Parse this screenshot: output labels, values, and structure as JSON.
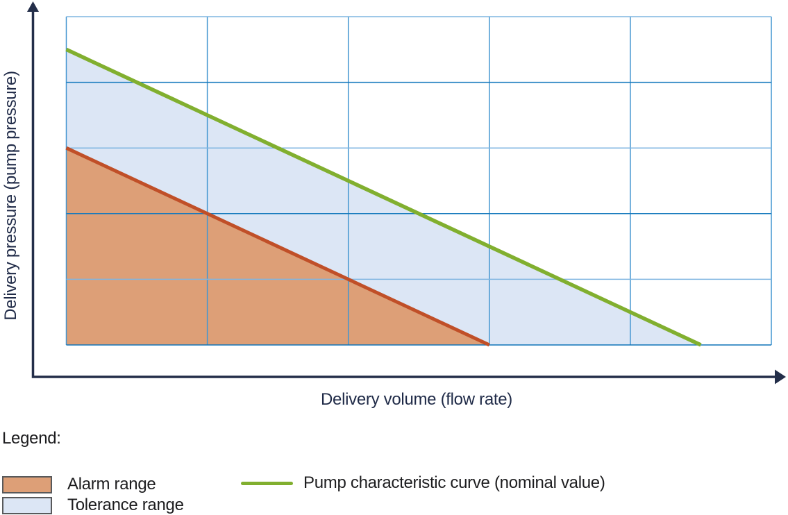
{
  "figure": {
    "y_axis_label": "Delivery pressure (pump pressure)",
    "x_axis_label": "Delivery volume (flow rate)"
  },
  "legend": {
    "title": "Legend:",
    "items": [
      {
        "swatch": "area",
        "color": "#DD9F77",
        "border": "#58595B",
        "label": "Alarm range"
      },
      {
        "swatch": "area",
        "color": "#DCE6F5",
        "border": "#58595B",
        "label": "Tolerance range"
      },
      {
        "swatch": "line",
        "color": "#81AF2F",
        "label": "Pump characteristic curve (nominal value)"
      }
    ]
  },
  "colors": {
    "axis": "#232E49",
    "axis_label_text": "#1F2A47",
    "legend_text": "#1D1D1F",
    "grid_vertical": "#4295D0",
    "alarm_fill": "#DD9F77",
    "alarm_line": "#C04F28",
    "tolerance_fill": "#DCE6F5",
    "nominal_line": "#81AF2F"
  },
  "chart_data": {
    "type": "area",
    "title": "",
    "xlabel": "Delivery volume (flow rate)",
    "ylabel": "Delivery pressure (pump pressure)",
    "x_range": [
      0,
      5
    ],
    "y_range": [
      0,
      5
    ],
    "grid": {
      "on": true,
      "x_step": 1,
      "y_step": 1,
      "v_line_color": "#4295D0",
      "h_line_colors_top_to_bottom": [
        "#7FB5E1",
        "#1579BD",
        "#7FB5E1",
        "#1579BD",
        "#7FB5E1",
        "#0F74B8"
      ]
    },
    "note": "Qualitative chart: no numeric tick labels shown; coordinates in grid units (5x5 grid).",
    "areas": [
      {
        "name": "tolerance-range",
        "points": [
          [
            0,
            3
          ],
          [
            0,
            4.5
          ],
          [
            4.5,
            0
          ],
          [
            3,
            0
          ]
        ],
        "fill": "#DCE6F5"
      },
      {
        "name": "alarm-range",
        "points": [
          [
            0,
            0
          ],
          [
            0,
            3
          ],
          [
            3,
            0
          ]
        ],
        "fill": "#DD9F77"
      }
    ],
    "lines": [
      {
        "name": "alarm-limit-line",
        "points": [
          [
            0,
            3
          ],
          [
            3,
            0
          ]
        ],
        "color": "#C04F28",
        "width": 5
      },
      {
        "name": "nominal-pump-curve",
        "points": [
          [
            0,
            4.5
          ],
          [
            4.5,
            0
          ]
        ],
        "color": "#81AF2F",
        "width": 5.5
      }
    ],
    "legend_position": "bottom-left"
  }
}
